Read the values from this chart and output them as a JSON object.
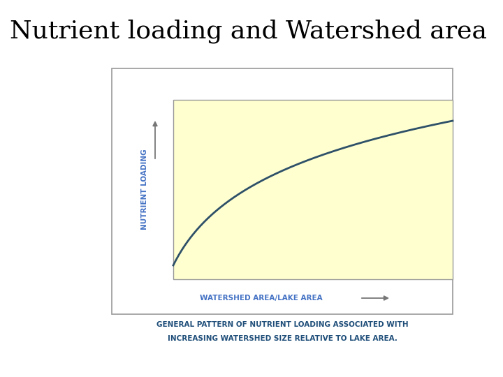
{
  "title": "Nutrient loading and Watershed area",
  "title_fontsize": 26,
  "title_color": "#000000",
  "plot_bg_color": "#FFFFD0",
  "outer_bg_color": "#FFFFFF",
  "curve_color": "#2E5068",
  "curve_linewidth": 2.0,
  "ylabel": "NUTRIENT LOADING",
  "xlabel": "WATERSHED AREA/LAKE AREA",
  "xlabel_color": "#4472C4",
  "ylabel_color": "#4472C4",
  "axis_label_fontsize": 7.5,
  "caption_line1": "GENERAL PATTERN OF NUTRIENT LOADING ASSOCIATED WITH",
  "caption_line2": "INCREASING WATERSHED SIZE RELATIVE TO LAKE AREA.",
  "caption_color": "#1F4E79",
  "caption_fontsize": 7.5,
  "outer_border_color": "#999999",
  "inner_border_color": "#999999",
  "arrow_color": "#777777"
}
